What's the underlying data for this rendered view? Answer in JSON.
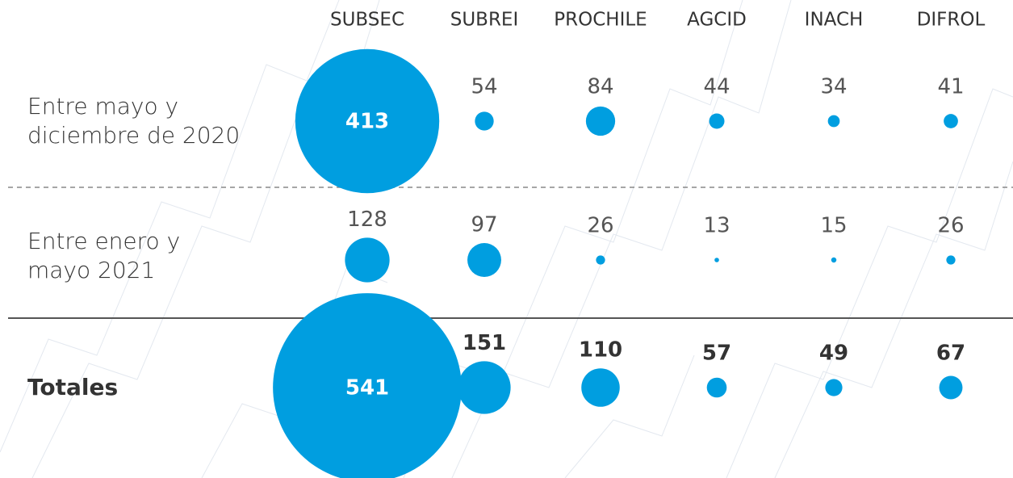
{
  "chart_data": {
    "type": "bubble",
    "categories": [
      "SUBSEC",
      "SUBREI",
      "PROCHILE",
      "AGCID",
      "INACH",
      "DIFROL"
    ],
    "color": "#009ee0",
    "series": [
      {
        "name": "Entre mayo y\ndiciembre de 2020",
        "values": [
          413,
          54,
          84,
          44,
          34,
          41
        ]
      },
      {
        "name": "Entre enero y\nmayo 2021",
        "values": [
          128,
          97,
          26,
          13,
          15,
          26
        ]
      },
      {
        "name": "Totales",
        "values": [
          541,
          151,
          110,
          57,
          49,
          67
        ]
      }
    ]
  }
}
